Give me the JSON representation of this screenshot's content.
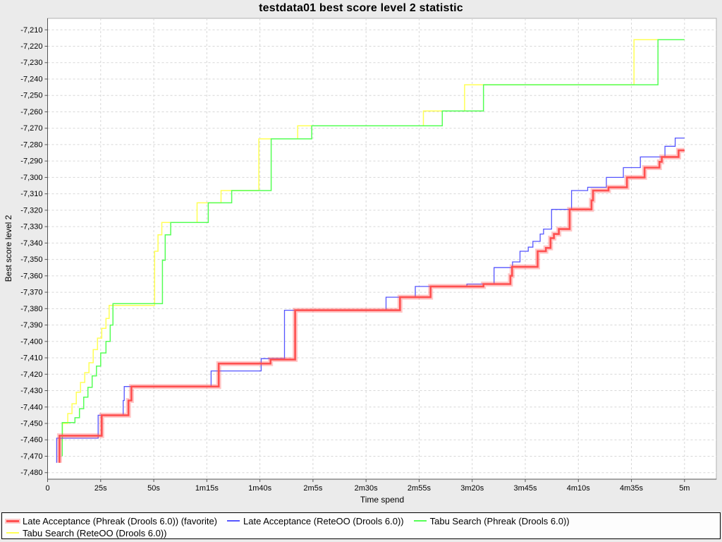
{
  "title": "testdata01 best score level 2 statistic",
  "colors": {
    "page_bg": "#ebebeb",
    "plot_bg": "#ffffff",
    "plot_border": "#b0b0b0",
    "axis_line": "#545454",
    "gridline": "#d7d7d7",
    "tick_label": "#000000",
    "legend_bg": "#fdfdfd",
    "legend_border": "#000000"
  },
  "chart_data": {
    "type": "line",
    "variant": "step",
    "title": "testdata01 best score level 2 statistic",
    "xlabel": "Time spend",
    "ylabel": "Best score level 2",
    "grid": "dashed",
    "legend_position": "bottom",
    "x_axis": {
      "min_s": 0,
      "max_s": 315,
      "ticks": [
        {
          "t": 0,
          "label": "0"
        },
        {
          "t": 25,
          "label": "25s"
        },
        {
          "t": 50,
          "label": "50s"
        },
        {
          "t": 75,
          "label": "1m15s"
        },
        {
          "t": 100,
          "label": "1m40s"
        },
        {
          "t": 125,
          "label": "2m5s"
        },
        {
          "t": 150,
          "label": "2m30s"
        },
        {
          "t": 175,
          "label": "2m55s"
        },
        {
          "t": 200,
          "label": "3m20s"
        },
        {
          "t": 225,
          "label": "3m45s"
        },
        {
          "t": 250,
          "label": "4m10s"
        },
        {
          "t": 275,
          "label": "4m35s"
        },
        {
          "t": 300,
          "label": "5m"
        }
      ]
    },
    "y_axis": {
      "min": -7484,
      "max": -7203,
      "ticks": [
        {
          "v": -7210,
          "label": "-7,210"
        },
        {
          "v": -7220,
          "label": "-7,220"
        },
        {
          "v": -7230,
          "label": "-7,230"
        },
        {
          "v": -7240,
          "label": "-7,240"
        },
        {
          "v": -7250,
          "label": "-7,250"
        },
        {
          "v": -7260,
          "label": "-7,260"
        },
        {
          "v": -7270,
          "label": "-7,270"
        },
        {
          "v": -7280,
          "label": "-7,280"
        },
        {
          "v": -7290,
          "label": "-7,290"
        },
        {
          "v": -7300,
          "label": "-7,300"
        },
        {
          "v": -7310,
          "label": "-7,310"
        },
        {
          "v": -7320,
          "label": "-7,320"
        },
        {
          "v": -7330,
          "label": "-7,330"
        },
        {
          "v": -7340,
          "label": "-7,340"
        },
        {
          "v": -7350,
          "label": "-7,350"
        },
        {
          "v": -7360,
          "label": "-7,360"
        },
        {
          "v": -7370,
          "label": "-7,370"
        },
        {
          "v": -7380,
          "label": "-7,380"
        },
        {
          "v": -7390,
          "label": "-7,390"
        },
        {
          "v": -7400,
          "label": "-7,400"
        },
        {
          "v": -7410,
          "label": "-7,410"
        },
        {
          "v": -7420,
          "label": "-7,420"
        },
        {
          "v": -7430,
          "label": "-7,430"
        },
        {
          "v": -7440,
          "label": "-7,440"
        },
        {
          "v": -7450,
          "label": "-7,450"
        },
        {
          "v": -7460,
          "label": "-7,460"
        },
        {
          "v": -7470,
          "label": "-7,470"
        },
        {
          "v": -7480,
          "label": "-7,480"
        }
      ]
    },
    "series": [
      {
        "name": "Late Acceptance (Phreak (Drools 6.0)) (favorite)",
        "color": "#ff5050",
        "halo_color": "rgba(255,85,85,0.33)",
        "width": 2.6,
        "halo_width": 7,
        "favorite": true,
        "points": [
          [
            5.6,
            -7474
          ],
          [
            5.6,
            -7457.5
          ],
          [
            25.5,
            -7445
          ],
          [
            38.1,
            -7436
          ],
          [
            39.5,
            -7427.5
          ],
          [
            80.6,
            -7413.5
          ],
          [
            105,
            -7411
          ],
          [
            116.6,
            -7381
          ],
          [
            166,
            -7373
          ],
          [
            180.4,
            -7366.5
          ],
          [
            205.3,
            -7365
          ],
          [
            218,
            -7360
          ],
          [
            218.8,
            -7354.5
          ],
          [
            230.8,
            -7345
          ],
          [
            234.7,
            -7343
          ],
          [
            236.9,
            -7337
          ],
          [
            238.5,
            -7334.5
          ],
          [
            240.8,
            -7331.5
          ],
          [
            245.9,
            -7319.5
          ],
          [
            256.2,
            -7314
          ],
          [
            256.9,
            -7308
          ],
          [
            264.2,
            -7306
          ],
          [
            272.9,
            -7300
          ],
          [
            281.2,
            -7294
          ],
          [
            288.2,
            -7290.5
          ],
          [
            289.3,
            -7287.5
          ],
          [
            297.2,
            -7283.5
          ],
          [
            300,
            -7283.5
          ]
        ]
      },
      {
        "name": "Late Acceptance (ReteOO (Drools 6.0))",
        "color": "#5555ff",
        "width": 1.3,
        "favorite": false,
        "points": [
          [
            4.3,
            -7474
          ],
          [
            4.3,
            -7459
          ],
          [
            23.8,
            -7445
          ],
          [
            35.6,
            -7436
          ],
          [
            36.1,
            -7427.5
          ],
          [
            77,
            -7418
          ],
          [
            100.6,
            -7410.5
          ],
          [
            111.6,
            -7381
          ],
          [
            159.4,
            -7373
          ],
          [
            173.2,
            -7366.5
          ],
          [
            197.5,
            -7365
          ],
          [
            210.3,
            -7355
          ],
          [
            219,
            -7351.5
          ],
          [
            222.5,
            -7345
          ],
          [
            226.4,
            -7342.5
          ],
          [
            228.6,
            -7339
          ],
          [
            232,
            -7334.5
          ],
          [
            233.6,
            -7331.5
          ],
          [
            237.4,
            -7319.5
          ],
          [
            246.8,
            -7308
          ],
          [
            254.4,
            -7306
          ],
          [
            263.2,
            -7300
          ],
          [
            271.2,
            -7294
          ],
          [
            279.2,
            -7287.5
          ],
          [
            290.8,
            -7281
          ],
          [
            295.6,
            -7276
          ],
          [
            300,
            -7276
          ]
        ]
      },
      {
        "name": "Tabu Search (Phreak (Drools 6.0))",
        "color": "#55ff55",
        "width": 1.5,
        "favorite": false,
        "points": [
          [
            6.9,
            -7470
          ],
          [
            6.9,
            -7449.5
          ],
          [
            12.9,
            -7446.5
          ],
          [
            15,
            -7441
          ],
          [
            17,
            -7434
          ],
          [
            19,
            -7428
          ],
          [
            21,
            -7421
          ],
          [
            23,
            -7415
          ],
          [
            25,
            -7407
          ],
          [
            27.5,
            -7400
          ],
          [
            29.5,
            -7390
          ],
          [
            30.8,
            -7377
          ],
          [
            54.1,
            -7350.5
          ],
          [
            55.4,
            -7335
          ],
          [
            58,
            -7327.5
          ],
          [
            75.7,
            -7315.5
          ],
          [
            86.7,
            -7308
          ],
          [
            105.3,
            -7276.5
          ],
          [
            124.4,
            -7268.5
          ],
          [
            185.9,
            -7259.5
          ],
          [
            205.3,
            -7243.5
          ],
          [
            287.5,
            -7216
          ],
          [
            300,
            -7216
          ]
        ]
      },
      {
        "name": "Tabu Search (ReteOO (Drools 6.0))",
        "color": "#ffff55",
        "width": 1.5,
        "favorite": false,
        "points": [
          [
            7,
            -7461
          ],
          [
            7,
            -7450
          ],
          [
            9.5,
            -7444
          ],
          [
            11.5,
            -7438
          ],
          [
            13.5,
            -7431
          ],
          [
            15.5,
            -7425
          ],
          [
            17.5,
            -7419
          ],
          [
            19.5,
            -7413
          ],
          [
            21.5,
            -7405
          ],
          [
            23.5,
            -7398
          ],
          [
            25.5,
            -7392
          ],
          [
            27.5,
            -7386
          ],
          [
            29,
            -7378
          ],
          [
            50.4,
            -7345
          ],
          [
            52,
            -7335
          ],
          [
            53.8,
            -7327.5
          ],
          [
            70.4,
            -7315.5
          ],
          [
            81.7,
            -7308
          ],
          [
            99.5,
            -7276.5
          ],
          [
            117.8,
            -7268.5
          ],
          [
            177,
            -7259.5
          ],
          [
            196.4,
            -7243.5
          ],
          [
            276.2,
            -7216
          ],
          [
            300,
            -7216
          ]
        ]
      }
    ]
  },
  "legend": {
    "rows": [
      [
        {
          "series": 0,
          "label": "Late Acceptance (Phreak (Drools 6.0)) (favorite)"
        },
        {
          "series": 1,
          "label": "Late Acceptance (ReteOO (Drools 6.0))"
        },
        {
          "series": 2,
          "label": "Tabu Search (Phreak (Drools 6.0))"
        }
      ],
      [
        {
          "series": 3,
          "label": "Tabu Search (ReteOO (Drools 6.0))"
        }
      ]
    ]
  }
}
